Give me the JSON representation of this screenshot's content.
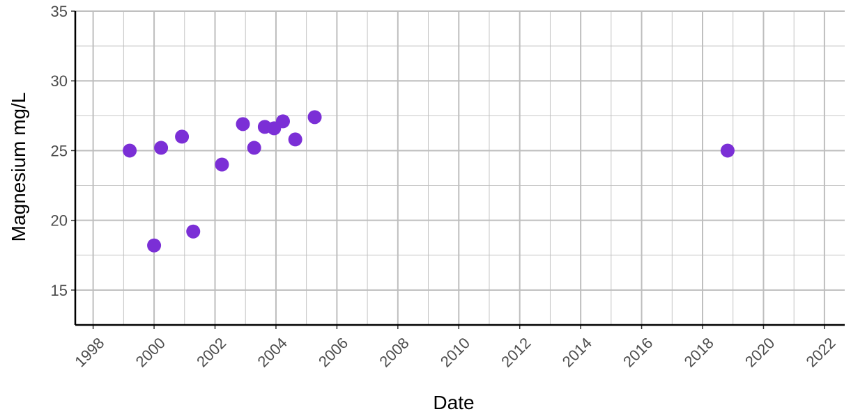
{
  "chart_data": {
    "type": "scatter",
    "title": "",
    "xlabel": "Date",
    "ylabel": "Magnesium mg/L",
    "x_type": "date",
    "xlim": [
      "1997-06-01",
      "2022-09-01"
    ],
    "ylim": [
      12.5,
      35
    ],
    "x_ticks": [
      "1998",
      "2000",
      "2002",
      "2004",
      "2006",
      "2008",
      "2010",
      "2012",
      "2014",
      "2016",
      "2018",
      "2020",
      "2022"
    ],
    "y_ticks": [
      15,
      20,
      25,
      30,
      35
    ],
    "grid": true,
    "legend": "none",
    "point_color": "#7b2fd6",
    "grid_color": "#bebebe",
    "series": [
      {
        "x": [
          "1999-03-15",
          "2000-01-01",
          "2000-03-25",
          "2000-12-01",
          "2001-04-15",
          "2002-03-25",
          "2002-12-01",
          "2003-04-15",
          "2003-08-20",
          "2003-12-10",
          "2004-03-25",
          "2004-08-20",
          "2005-04-10",
          "2018-10-28"
        ],
        "y": [
          25.0,
          18.2,
          25.2,
          26.0,
          19.2,
          24.0,
          26.9,
          25.2,
          26.7,
          26.6,
          27.1,
          25.8,
          27.4,
          25.0
        ]
      }
    ]
  }
}
